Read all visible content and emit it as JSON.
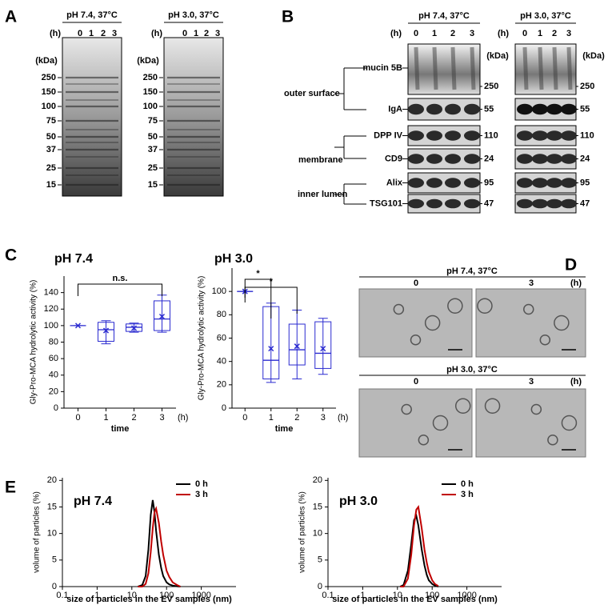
{
  "figure": {
    "panel_labels": [
      "A",
      "B",
      "C",
      "D",
      "E"
    ],
    "gels": [
      {
        "title": "pH 7.4, 37°C",
        "hours_unit": "(h)",
        "lanes": [
          "0",
          "1",
          "2",
          "3"
        ],
        "kda_unit": "(kDa)",
        "markers": [
          "250",
          "150",
          "100",
          "75",
          "50",
          "37",
          "25",
          "15"
        ]
      },
      {
        "title": "pH 3.0, 37°C",
        "hours_unit": "(h)",
        "lanes": [
          "0",
          "1",
          "2",
          "3"
        ],
        "kda_unit": "(kDa)",
        "markers": [
          "250",
          "150",
          "100",
          "75",
          "50",
          "37",
          "25",
          "15"
        ]
      }
    ],
    "blots": {
      "conditions": [
        {
          "title": "pH 7.4, 37°C",
          "hours_unit": "(h)",
          "lanes": [
            "0",
            "1",
            "2",
            "3"
          ],
          "kda_unit": "(kDa)"
        },
        {
          "title": "pH 3.0, 37°C",
          "hours_unit": "(h)",
          "lanes": [
            "0",
            "1",
            "2",
            "3"
          ],
          "kda_unit": "(kDa)"
        }
      ],
      "rows": [
        {
          "name": "mucin 5B",
          "kda": "250"
        },
        {
          "name": "IgA",
          "kda": "55"
        },
        {
          "name": "DPP IV",
          "kda": "110"
        },
        {
          "name": "CD9",
          "kda": "24"
        },
        {
          "name": "Alix",
          "kda": "95"
        },
        {
          "name": "TSG101",
          "kda": "47"
        }
      ],
      "groups": [
        "outer surface",
        "membrane",
        "inner lumen"
      ]
    },
    "micrographs": [
      {
        "title": "pH 7.4, 37°C",
        "times": [
          "0",
          "3"
        ],
        "hours_unit": "(h)"
      },
      {
        "title": "pH 3.0, 37°C",
        "times": [
          "0",
          "3"
        ],
        "hours_unit": "(h)"
      }
    ]
  },
  "chart_data": [
    {
      "type": "box",
      "title": "pH 7.4",
      "y_label": "Gly-Pro-MCA hydrolytic activity (%)",
      "x_label": "time",
      "x_unit": "(h)",
      "color": "#2a2ad0",
      "categories": [
        "0",
        "1",
        "2",
        "3"
      ],
      "ylim": [
        0,
        160
      ],
      "yticks": [
        0,
        20,
        40,
        60,
        80,
        100,
        120,
        140
      ],
      "annotations": [
        "n.s."
      ],
      "boxes": [
        {
          "min": 100,
          "q1": 100,
          "median": 100,
          "q3": 100,
          "max": 100,
          "mean": 100
        },
        {
          "min": 78,
          "q1": 81,
          "median": 95,
          "q3": 104,
          "max": 106,
          "mean": 94
        },
        {
          "min": 92,
          "q1": 93,
          "median": 98,
          "q3": 102,
          "max": 103,
          "mean": 97
        },
        {
          "min": 92,
          "q1": 94,
          "median": 108,
          "q3": 130,
          "max": 137,
          "mean": 111
        }
      ]
    },
    {
      "type": "box",
      "title": "pH 3.0",
      "y_label": "Gly-Pro-MCA hydrolytic activity (%)",
      "x_label": "time",
      "x_unit": "(h)",
      "color": "#2a2ad0",
      "categories": [
        "0",
        "1",
        "2",
        "3"
      ],
      "ylim": [
        0,
        120
      ],
      "yticks": [
        0,
        20,
        40,
        60,
        80,
        100
      ],
      "annotations": [
        "*",
        "*"
      ],
      "boxes": [
        {
          "min": 100,
          "q1": 100,
          "median": 100,
          "q3": 100,
          "max": 100,
          "mean": 100
        },
        {
          "min": 22,
          "q1": 25,
          "median": 41,
          "q3": 87,
          "max": 90,
          "mean": 51
        },
        {
          "min": 25,
          "q1": 37,
          "median": 50,
          "q3": 72,
          "max": 84,
          "mean": 53
        },
        {
          "min": 29,
          "q1": 34,
          "median": 47,
          "q3": 74,
          "max": 77,
          "mean": 51
        }
      ]
    },
    {
      "type": "line",
      "title": "pH 7.4",
      "y_label": "volume of particles (%)",
      "x_label": "size of particles in the EV samples (nm)",
      "xscale": "log",
      "xlim": [
        0.1,
        10000
      ],
      "xticks": [
        0.1,
        1,
        10,
        100,
        1000
      ],
      "ylim": [
        0,
        20.5
      ],
      "yticks": [
        0,
        5,
        10,
        15,
        20
      ],
      "legend": "upper right",
      "x": [
        15,
        20,
        25,
        30,
        35,
        40,
        45,
        50,
        60,
        70,
        80,
        100,
        120,
        150,
        200,
        250
      ],
      "series": [
        {
          "name": "0 h",
          "color": "#000000",
          "values": [
            0,
            0.3,
            2,
            7,
            13.5,
            16.3,
            14,
            10.5,
            6,
            3.5,
            2,
            0.8,
            0.4,
            0.2,
            0.05,
            0
          ]
        },
        {
          "name": "3 h",
          "color": "#c00000",
          "values": [
            0,
            0,
            0.5,
            2.5,
            6.5,
            11,
            14,
            14.7,
            12,
            8.5,
            6,
            3,
            1.8,
            0.8,
            0.3,
            0
          ]
        }
      ]
    },
    {
      "type": "line",
      "title": "pH 3.0",
      "y_label": "volume of particles (%)",
      "x_label": "size of particles in the EV samples (nm)",
      "xscale": "log",
      "xlim": [
        0.1,
        10000
      ],
      "xticks": [
        0.1,
        1,
        10,
        100,
        1000
      ],
      "ylim": [
        0,
        20.5
      ],
      "yticks": [
        0,
        5,
        10,
        15,
        20
      ],
      "legend": "upper right",
      "x": [
        12,
        15,
        20,
        25,
        30,
        35,
        40,
        50,
        60,
        70,
        80,
        100,
        120,
        150
      ],
      "series": [
        {
          "name": "0 h",
          "color": "#000000",
          "values": [
            0,
            0.3,
            3,
            8,
            12.5,
            13.3,
            11.5,
            7,
            4,
            2.2,
            1.2,
            0.5,
            0.2,
            0
          ]
        },
        {
          "name": "3 h",
          "color": "#c00000",
          "values": [
            0,
            0,
            1.5,
            6,
            11.5,
            14.5,
            15,
            11,
            7,
            4.5,
            2.8,
            1.2,
            0.5,
            0.1
          ]
        }
      ]
    }
  ]
}
